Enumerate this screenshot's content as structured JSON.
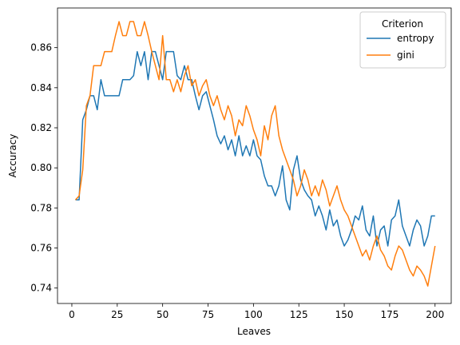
{
  "chart_data": {
    "type": "line",
    "title": "",
    "xlabel": "Leaves",
    "ylabel": "Accuracy",
    "xlim": [
      -7.9,
      208.9
    ],
    "ylim": [
      0.7323,
      0.8798
    ],
    "xticks": [
      0,
      25,
      50,
      75,
      100,
      125,
      150,
      175,
      200
    ],
    "yticks": [
      0.74,
      0.76,
      0.78,
      0.8,
      0.82,
      0.84,
      0.86
    ],
    "ytick_labels": [
      "0.74",
      "0.76",
      "0.78",
      "0.80",
      "0.82",
      "0.84",
      "0.86"
    ],
    "grid": false,
    "legend": {
      "title": "Criterion",
      "placement": "top-right"
    },
    "series": [
      {
        "name": "entropy",
        "color": "#1f77b4",
        "x": [
          2,
          4,
          6,
          8,
          10,
          12,
          14,
          16,
          18,
          20,
          22,
          24,
          26,
          28,
          30,
          32,
          34,
          36,
          38,
          40,
          42,
          44,
          46,
          48,
          50,
          52,
          54,
          56,
          58,
          60,
          62,
          64,
          66,
          68,
          70,
          72,
          74,
          76,
          78,
          80,
          82,
          84,
          86,
          88,
          90,
          92,
          94,
          96,
          98,
          100,
          102,
          104,
          106,
          108,
          110,
          112,
          114,
          116,
          118,
          120,
          122,
          124,
          126,
          128,
          130,
          132,
          134,
          136,
          138,
          140,
          142,
          144,
          146,
          148,
          150,
          152,
          154,
          156,
          158,
          160,
          162,
          164,
          166,
          168,
          170,
          172,
          174,
          176,
          178,
          180,
          182,
          184,
          186,
          188,
          190,
          192,
          194,
          196,
          198,
          200
        ],
        "y": [
          0.784,
          0.784,
          0.824,
          0.829,
          0.836,
          0.836,
          0.829,
          0.844,
          0.836,
          0.836,
          0.836,
          0.836,
          0.836,
          0.844,
          0.844,
          0.844,
          0.846,
          0.858,
          0.851,
          0.858,
          0.844,
          0.858,
          0.858,
          0.851,
          0.844,
          0.858,
          0.858,
          0.858,
          0.846,
          0.844,
          0.851,
          0.844,
          0.844,
          0.836,
          0.829,
          0.836,
          0.838,
          0.831,
          0.824,
          0.816,
          0.812,
          0.816,
          0.809,
          0.814,
          0.806,
          0.816,
          0.806,
          0.811,
          0.806,
          0.814,
          0.806,
          0.804,
          0.796,
          0.791,
          0.791,
          0.786,
          0.791,
          0.801,
          0.784,
          0.779,
          0.799,
          0.806,
          0.794,
          0.789,
          0.786,
          0.784,
          0.776,
          0.781,
          0.776,
          0.769,
          0.779,
          0.771,
          0.774,
          0.766,
          0.761,
          0.764,
          0.769,
          0.776,
          0.774,
          0.781,
          0.769,
          0.766,
          0.776,
          0.761,
          0.769,
          0.771,
          0.761,
          0.774,
          0.776,
          0.784,
          0.771,
          0.766,
          0.761,
          0.769,
          0.774,
          0.771,
          0.761,
          0.766,
          0.776,
          0.776
        ]
      },
      {
        "name": "gini",
        "color": "#ff7f0e",
        "x": [
          2,
          4,
          6,
          8,
          10,
          12,
          14,
          16,
          18,
          20,
          22,
          24,
          26,
          28,
          30,
          32,
          34,
          36,
          38,
          40,
          42,
          44,
          46,
          48,
          50,
          52,
          54,
          56,
          58,
          60,
          62,
          64,
          66,
          68,
          70,
          72,
          74,
          76,
          78,
          80,
          82,
          84,
          86,
          88,
          90,
          92,
          94,
          96,
          98,
          100,
          102,
          104,
          106,
          108,
          110,
          112,
          114,
          116,
          118,
          120,
          122,
          124,
          126,
          128,
          130,
          132,
          134,
          136,
          138,
          140,
          142,
          144,
          146,
          148,
          150,
          152,
          154,
          156,
          158,
          160,
          162,
          164,
          166,
          168,
          170,
          172,
          174,
          176,
          178,
          180,
          182,
          184,
          186,
          188,
          190,
          192,
          194,
          196,
          198,
          200
        ],
        "y": [
          0.784,
          0.786,
          0.799,
          0.831,
          0.836,
          0.851,
          0.851,
          0.851,
          0.858,
          0.858,
          0.858,
          0.866,
          0.873,
          0.866,
          0.866,
          0.873,
          0.873,
          0.866,
          0.866,
          0.873,
          0.866,
          0.858,
          0.851,
          0.844,
          0.866,
          0.844,
          0.844,
          0.838,
          0.844,
          0.838,
          0.846,
          0.851,
          0.841,
          0.844,
          0.836,
          0.841,
          0.844,
          0.836,
          0.831,
          0.836,
          0.829,
          0.824,
          0.831,
          0.826,
          0.816,
          0.824,
          0.821,
          0.831,
          0.826,
          0.819,
          0.814,
          0.806,
          0.821,
          0.814,
          0.826,
          0.831,
          0.816,
          0.809,
          0.804,
          0.799,
          0.794,
          0.786,
          0.791,
          0.799,
          0.794,
          0.786,
          0.791,
          0.786,
          0.794,
          0.789,
          0.781,
          0.786,
          0.791,
          0.784,
          0.779,
          0.776,
          0.771,
          0.766,
          0.761,
          0.756,
          0.759,
          0.754,
          0.761,
          0.766,
          0.759,
          0.756,
          0.751,
          0.749,
          0.756,
          0.761,
          0.759,
          0.754,
          0.749,
          0.746,
          0.751,
          0.749,
          0.746,
          0.741,
          0.751,
          0.761
        ]
      }
    ]
  }
}
